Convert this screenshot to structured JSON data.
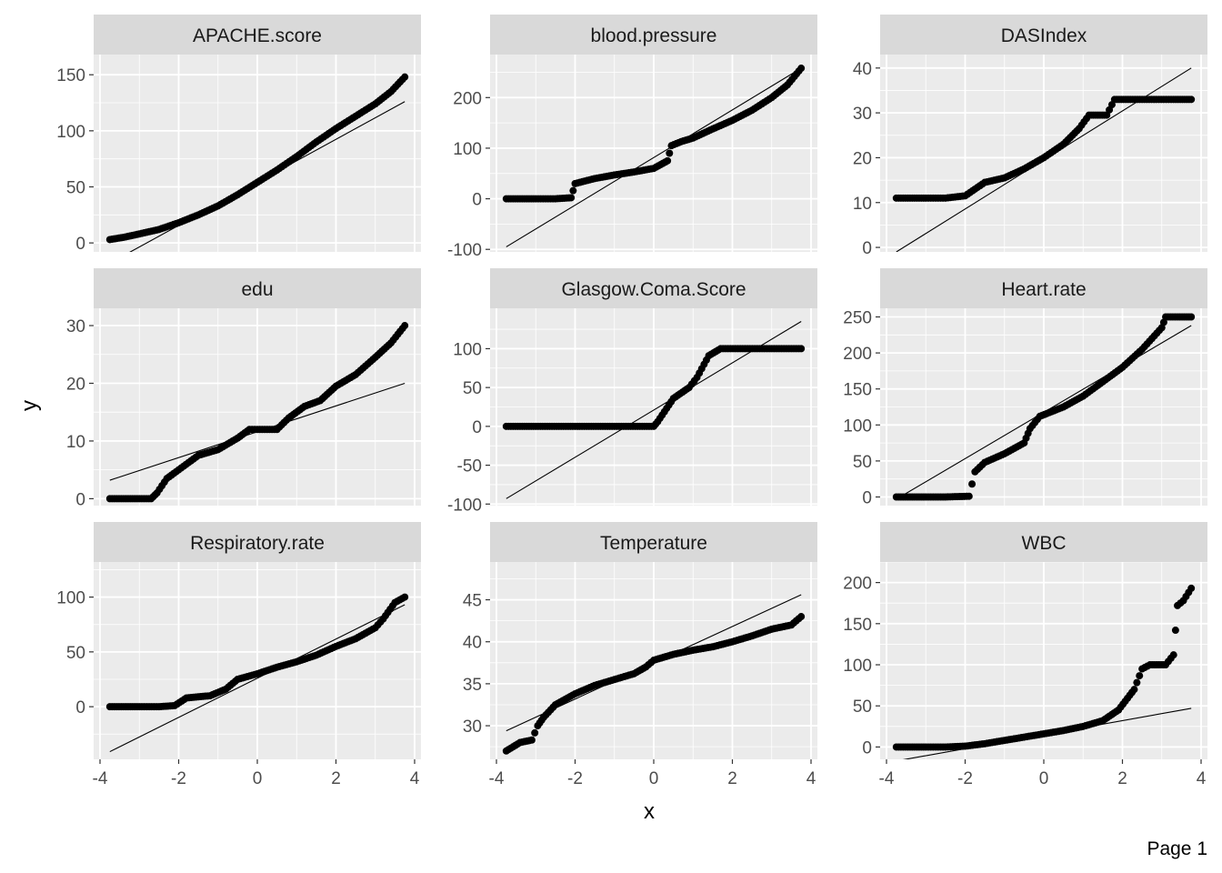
{
  "page_label": "Page 1",
  "chart_data": {
    "type": "scatter",
    "subtype": "qq-plot facet grid",
    "xlabel": "x",
    "ylabel": "y",
    "xlim": [
      -4,
      4
    ],
    "x_ticks": [
      -4,
      -2,
      0,
      2,
      4
    ],
    "grid": true,
    "layout": "3x3 facets, shared x axis",
    "colors": {
      "panel_bg": "#ebebeb",
      "strip_bg": "#d9d9d9",
      "grid": "#ffffff",
      "points": "#000000",
      "line": "#000000"
    },
    "panels": [
      {
        "title": "APACHE.score",
        "ylim": [
          -8,
          168
        ],
        "y_ticks": [
          0,
          50,
          100,
          150
        ],
        "line": [
          [
            -3.75,
            -18
          ],
          [
            3.75,
            126
          ]
        ],
        "points": [
          [
            -3.75,
            3
          ],
          [
            -3.4,
            5
          ],
          [
            -3,
            8
          ],
          [
            -2.5,
            12
          ],
          [
            -2,
            18
          ],
          [
            -1.5,
            25
          ],
          [
            -1,
            33
          ],
          [
            -0.5,
            43
          ],
          [
            0,
            54
          ],
          [
            0.5,
            65
          ],
          [
            1,
            77
          ],
          [
            1.5,
            90
          ],
          [
            2,
            102
          ],
          [
            2.5,
            113
          ],
          [
            3,
            124
          ],
          [
            3.4,
            135
          ],
          [
            3.75,
            148
          ]
        ]
      },
      {
        "title": "blood.pressure",
        "ylim": [
          -105,
          285
        ],
        "y_ticks": [
          -100,
          0,
          100,
          200
        ],
        "line": [
          [
            -3.75,
            -95
          ],
          [
            3.75,
            258
          ]
        ],
        "points": [
          [
            -3.75,
            0
          ],
          [
            -3.4,
            0
          ],
          [
            -3,
            0
          ],
          [
            -2.5,
            0
          ],
          [
            -2.1,
            2
          ],
          [
            -2,
            30
          ],
          [
            -1.5,
            40
          ],
          [
            -1,
            47
          ],
          [
            -0.5,
            53
          ],
          [
            0,
            60
          ],
          [
            0.35,
            75
          ],
          [
            0.45,
            105
          ],
          [
            0.7,
            113
          ],
          [
            1,
            120
          ],
          [
            1.5,
            138
          ],
          [
            2,
            155
          ],
          [
            2.5,
            175
          ],
          [
            3,
            200
          ],
          [
            3.4,
            225
          ],
          [
            3.75,
            258
          ]
        ]
      },
      {
        "title": "DASIndex",
        "ylim": [
          -1,
          43
        ],
        "y_ticks": [
          0,
          10,
          20,
          30,
          40
        ],
        "line": [
          [
            -3.75,
            -1
          ],
          [
            3.75,
            40
          ]
        ],
        "points": [
          [
            -3.75,
            11
          ],
          [
            -3.4,
            11
          ],
          [
            -3,
            11
          ],
          [
            -2.5,
            11
          ],
          [
            -2,
            11.5
          ],
          [
            -1.5,
            14.5
          ],
          [
            -1,
            15.5
          ],
          [
            -0.5,
            17.5
          ],
          [
            0,
            20
          ],
          [
            0.5,
            23
          ],
          [
            0.9,
            26.5
          ],
          [
            1.15,
            29.5
          ],
          [
            1.6,
            29.5
          ],
          [
            1.8,
            33
          ],
          [
            2.2,
            33
          ],
          [
            2.8,
            33
          ],
          [
            3.3,
            33
          ],
          [
            3.75,
            33
          ]
        ]
      },
      {
        "title": "edu",
        "ylim": [
          -1.2,
          33
        ],
        "y_ticks": [
          0,
          10,
          20,
          30
        ],
        "line": [
          [
            -3.75,
            3.2
          ],
          [
            3.75,
            20
          ]
        ],
        "points": [
          [
            -3.75,
            0
          ],
          [
            -3.4,
            0
          ],
          [
            -3,
            0
          ],
          [
            -2.7,
            0
          ],
          [
            -2.55,
            1
          ],
          [
            -2.3,
            3.5
          ],
          [
            -2,
            5
          ],
          [
            -1.5,
            7.5
          ],
          [
            -1,
            8.5
          ],
          [
            -0.5,
            10.5
          ],
          [
            -0.2,
            12
          ],
          [
            0,
            12
          ],
          [
            0.5,
            12
          ],
          [
            0.8,
            14
          ],
          [
            1.2,
            16
          ],
          [
            1.6,
            17
          ],
          [
            2,
            19.5
          ],
          [
            2.5,
            21.5
          ],
          [
            3,
            24.5
          ],
          [
            3.4,
            27
          ],
          [
            3.75,
            30
          ]
        ]
      },
      {
        "title": "Glasgow.Coma.Score",
        "ylim": [
          -102,
          152
        ],
        "y_ticks": [
          -100,
          -50,
          0,
          50,
          100
        ],
        "line": [
          [
            -3.75,
            -93
          ],
          [
            3.75,
            135
          ]
        ],
        "points": [
          [
            -3.75,
            0
          ],
          [
            -3.4,
            0
          ],
          [
            -3,
            0
          ],
          [
            -2,
            0
          ],
          [
            -1,
            0
          ],
          [
            0,
            0
          ],
          [
            0.1,
            6
          ],
          [
            0.5,
            36
          ],
          [
            0.9,
            50
          ],
          [
            1.1,
            63
          ],
          [
            1.4,
            91
          ],
          [
            1.7,
            100
          ],
          [
            2.2,
            100
          ],
          [
            3,
            100
          ],
          [
            3.5,
            100
          ],
          [
            3.75,
            100
          ]
        ]
      },
      {
        "title": "Heart.rate",
        "ylim": [
          -12,
          262
        ],
        "y_ticks": [
          0,
          50,
          100,
          150,
          200,
          250
        ],
        "line": [
          [
            -3.75,
            -3
          ],
          [
            3.75,
            238
          ]
        ],
        "points": [
          [
            -3.75,
            0
          ],
          [
            -3.4,
            0
          ],
          [
            -3,
            0
          ],
          [
            -2.5,
            0
          ],
          [
            -1.9,
            1
          ],
          [
            -1.75,
            35
          ],
          [
            -1.5,
            48
          ],
          [
            -1,
            60
          ],
          [
            -0.5,
            75
          ],
          [
            -0.35,
            95
          ],
          [
            -0.1,
            112
          ],
          [
            0.5,
            125
          ],
          [
            1,
            140
          ],
          [
            1.5,
            160
          ],
          [
            2,
            180
          ],
          [
            2.5,
            205
          ],
          [
            3,
            235
          ],
          [
            3.1,
            250
          ],
          [
            3.4,
            250
          ],
          [
            3.75,
            250
          ]
        ]
      },
      {
        "title": "Respiratory.rate",
        "ylim": [
          -48,
          132
        ],
        "y_ticks": [
          0,
          50,
          100
        ],
        "line": [
          [
            -3.75,
            -41
          ],
          [
            3.75,
            93
          ]
        ],
        "points": [
          [
            -3.75,
            0
          ],
          [
            -3.4,
            0
          ],
          [
            -3,
            0
          ],
          [
            -2.5,
            0
          ],
          [
            -2.1,
            1
          ],
          [
            -1.8,
            8
          ],
          [
            -1.2,
            10
          ],
          [
            -0.8,
            16
          ],
          [
            -0.5,
            25
          ],
          [
            0,
            30
          ],
          [
            0.5,
            36
          ],
          [
            1,
            41
          ],
          [
            1.5,
            47
          ],
          [
            2,
            55
          ],
          [
            2.5,
            62
          ],
          [
            3,
            72
          ],
          [
            3.2,
            80
          ],
          [
            3.5,
            95
          ],
          [
            3.75,
            100
          ]
        ]
      },
      {
        "title": "Temperature",
        "ylim": [
          26,
          49.5
        ],
        "y_ticks": [
          30,
          35,
          40,
          45
        ],
        "line": [
          [
            -3.75,
            29.4
          ],
          [
            3.75,
            45.6
          ]
        ],
        "points": [
          [
            -3.75,
            27
          ],
          [
            -3.4,
            28
          ],
          [
            -3.1,
            28.3
          ],
          [
            -2.95,
            30
          ],
          [
            -2.8,
            31
          ],
          [
            -2.5,
            32.5
          ],
          [
            -2,
            33.8
          ],
          [
            -1.5,
            34.8
          ],
          [
            -1,
            35.5
          ],
          [
            -0.5,
            36.2
          ],
          [
            -0.2,
            37
          ],
          [
            0,
            37.8
          ],
          [
            0.5,
            38.5
          ],
          [
            1,
            39
          ],
          [
            1.5,
            39.4
          ],
          [
            2,
            40
          ],
          [
            2.5,
            40.7
          ],
          [
            3,
            41.5
          ],
          [
            3.5,
            42
          ],
          [
            3.75,
            43
          ]
        ]
      },
      {
        "title": "WBC",
        "ylim": [
          -15,
          225
        ],
        "y_ticks": [
          0,
          50,
          100,
          150,
          200
        ],
        "line": [
          [
            -3.75,
            -17
          ],
          [
            3.75,
            47
          ]
        ],
        "points": [
          [
            -3.75,
            0
          ],
          [
            -3.4,
            0
          ],
          [
            -3,
            0
          ],
          [
            -2.5,
            0
          ],
          [
            -2,
            1
          ],
          [
            -1.5,
            4
          ],
          [
            -1,
            8
          ],
          [
            -0.5,
            12
          ],
          [
            0,
            16
          ],
          [
            0.5,
            20
          ],
          [
            1,
            25
          ],
          [
            1.5,
            32
          ],
          [
            1.9,
            45
          ],
          [
            2.3,
            70
          ],
          [
            2.5,
            95
          ],
          [
            2.7,
            100
          ],
          [
            3.1,
            100
          ],
          [
            3.3,
            112
          ],
          [
            3.4,
            172
          ],
          [
            3.55,
            178
          ],
          [
            3.75,
            193
          ]
        ]
      }
    ]
  }
}
